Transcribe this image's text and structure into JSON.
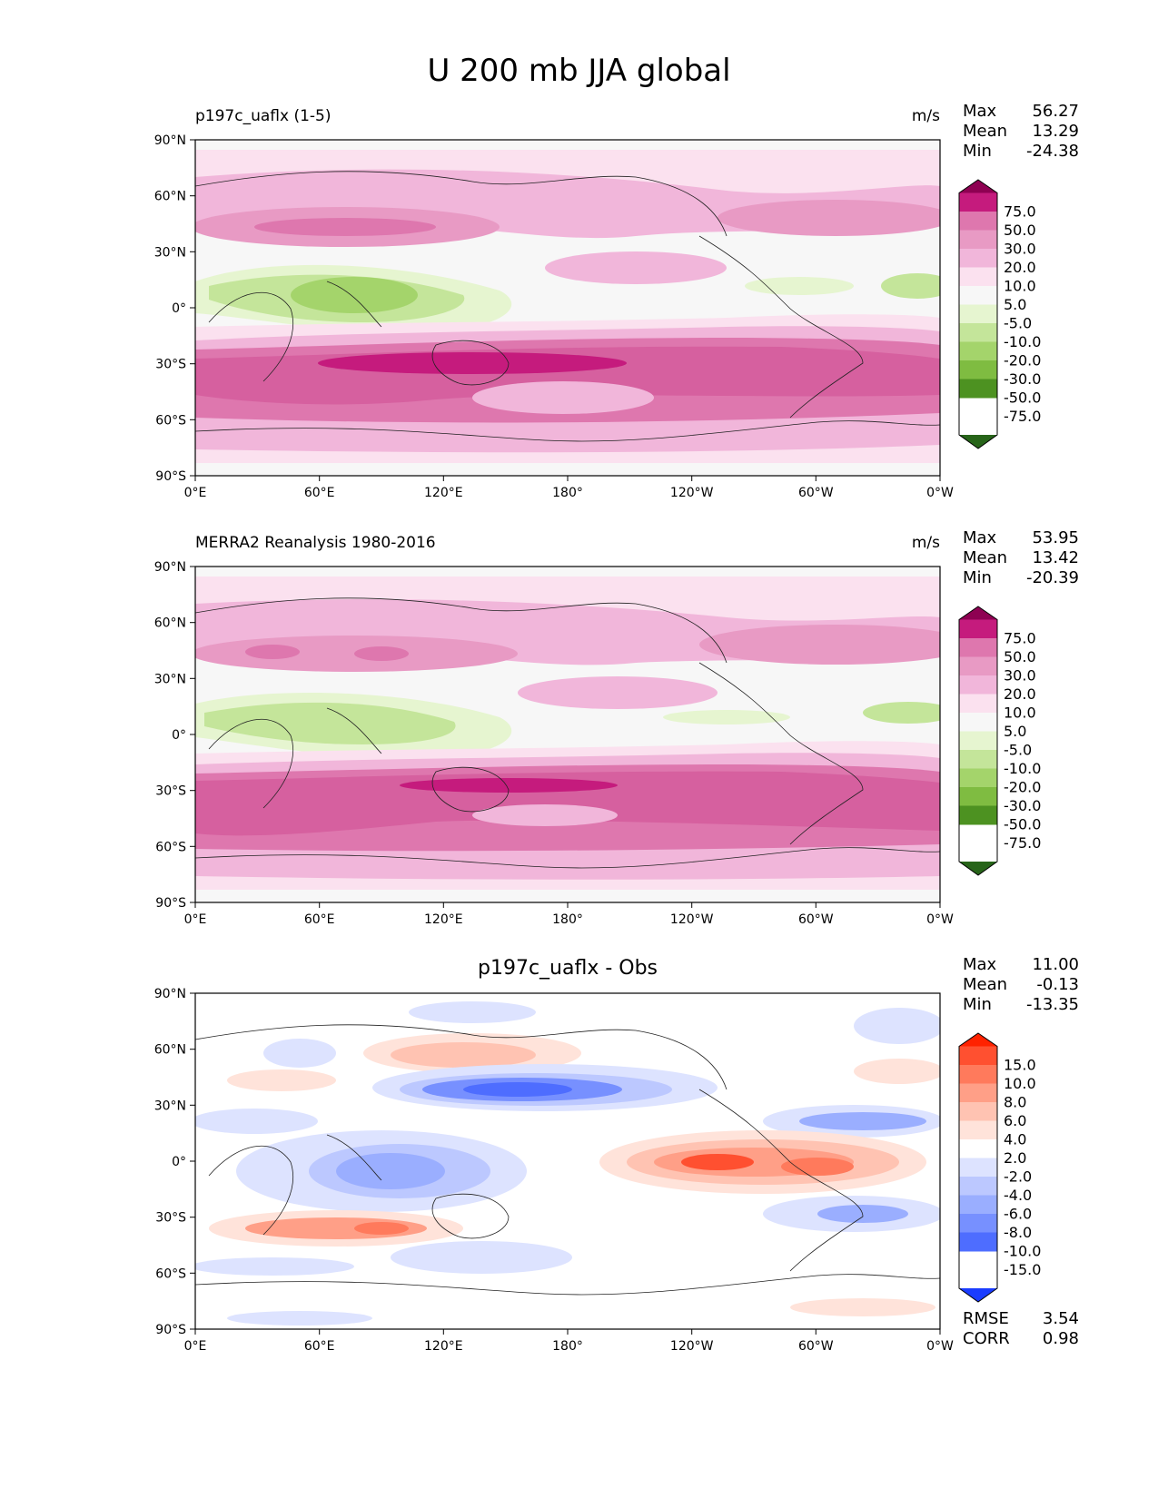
{
  "title": "U 200 mb JJA global",
  "lat_ticks": [
    "90°N",
    "60°N",
    "30°N",
    "0°",
    "30°S",
    "60°S",
    "90°S"
  ],
  "lon_ticks": [
    "0°E",
    "60°E",
    "120°E",
    "180°",
    "120°W",
    "60°W",
    "0°W"
  ],
  "panels": [
    {
      "title": "p197c_uaflx (1-5)",
      "units": "m/s",
      "stats": [
        {
          "label": "Max",
          "value": "56.27"
        },
        {
          "label": "Mean",
          "value": "13.29"
        },
        {
          "label": "Min",
          "value": "-24.38"
        }
      ],
      "colorbar_levels": [
        "75.0",
        "50.0",
        "30.0",
        "20.0",
        "10.0",
        "5.0",
        "-5.0",
        "-10.0",
        "-20.0",
        "-30.0",
        "-50.0",
        "-75.0"
      ]
    },
    {
      "title": "MERRA2 Reanalysis 1980-2016",
      "units": "m/s",
      "stats": [
        {
          "label": "Max",
          "value": "53.95"
        },
        {
          "label": "Mean",
          "value": "13.42"
        },
        {
          "label": "Min",
          "value": "-20.39"
        }
      ],
      "colorbar_levels": [
        "75.0",
        "50.0",
        "30.0",
        "20.0",
        "10.0",
        "5.0",
        "-5.0",
        "-10.0",
        "-20.0",
        "-30.0",
        "-50.0",
        "-75.0"
      ]
    },
    {
      "title": "p197c_uaflx - Obs",
      "stats": [
        {
          "label": "Max",
          "value": "11.00"
        },
        {
          "label": "Mean",
          "value": "-0.13"
        },
        {
          "label": "Min",
          "value": "-13.35"
        }
      ],
      "colorbar_levels": [
        "15.0",
        "10.0",
        "8.0",
        "6.0",
        "4.0",
        "2.0",
        "-2.0",
        "-4.0",
        "-6.0",
        "-8.0",
        "-10.0",
        "-15.0"
      ],
      "metrics": [
        {
          "label": "RMSE",
          "value": "3.54"
        },
        {
          "label": "CORR",
          "value": "0.98"
        }
      ]
    }
  ],
  "colors": {
    "pink_scale": [
      "#8e0152",
      "#c51b7d",
      "#de77ae",
      "#e89ac4",
      "#f1b6da",
      "#fbe1ef",
      "#f7f7f7",
      "#e6f5d0",
      "#c4e59a",
      "#a4d46b",
      "#7fbc41",
      "#4d9221",
      "#276419"
    ],
    "diff_scale": [
      "#ff2200",
      "#ff5030",
      "#ff7a5c",
      "#ff9f87",
      "#ffc3b2",
      "#ffe3da",
      "#ffffff",
      "#dde3ff",
      "#bcc8ff",
      "#9aaeff",
      "#7790ff",
      "#4e6dff",
      "#1a3cff"
    ]
  }
}
